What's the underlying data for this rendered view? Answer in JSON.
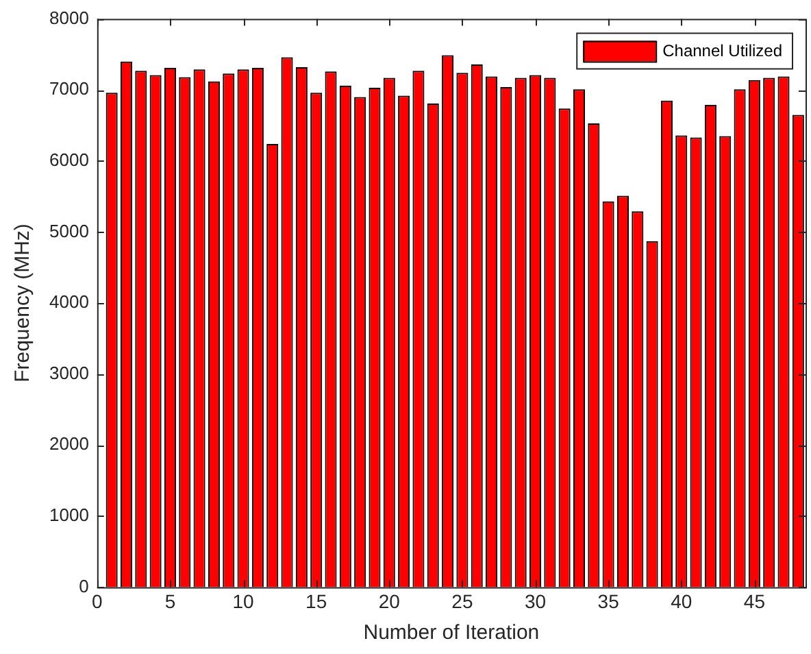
{
  "chart_data": {
    "type": "bar",
    "xlabel": "Number of Iteration",
    "ylabel": "Frequency (MHz)",
    "x": [
      1,
      2,
      3,
      4,
      5,
      6,
      7,
      8,
      9,
      10,
      11,
      12,
      13,
      14,
      15,
      16,
      17,
      18,
      19,
      20,
      21,
      22,
      23,
      24,
      25,
      26,
      27,
      28,
      29,
      30,
      31,
      32,
      33,
      34,
      35,
      36,
      37,
      38,
      39,
      40,
      41,
      42,
      43,
      44,
      45,
      46,
      47,
      48
    ],
    "series": [
      {
        "name": "Channel Utilized",
        "color": "#ff0000",
        "values": [
          6960,
          7400,
          7270,
          7210,
          7310,
          7180,
          7290,
          7120,
          7230,
          7290,
          7310,
          6240,
          7460,
          7320,
          6960,
          7260,
          7060,
          6900,
          7030,
          7170,
          6920,
          7270,
          6810,
          7490,
          7240,
          7360,
          7190,
          7040,
          7170,
          7210,
          7170,
          6740,
          7010,
          6530,
          5430,
          5510,
          5290,
          4870,
          6850,
          6360,
          6330,
          6790,
          6350,
          7010,
          7140,
          7170,
          7190,
          6650
        ]
      }
    ],
    "xlim": [
      0,
      48.5
    ],
    "xticks": [
      0,
      5,
      10,
      15,
      20,
      25,
      30,
      35,
      40,
      45
    ],
    "ylim": [
      0,
      8000
    ],
    "yticks": [
      0,
      1000,
      2000,
      3000,
      4000,
      5000,
      6000,
      7000,
      8000
    ],
    "grid": false,
    "legend": "top right"
  }
}
